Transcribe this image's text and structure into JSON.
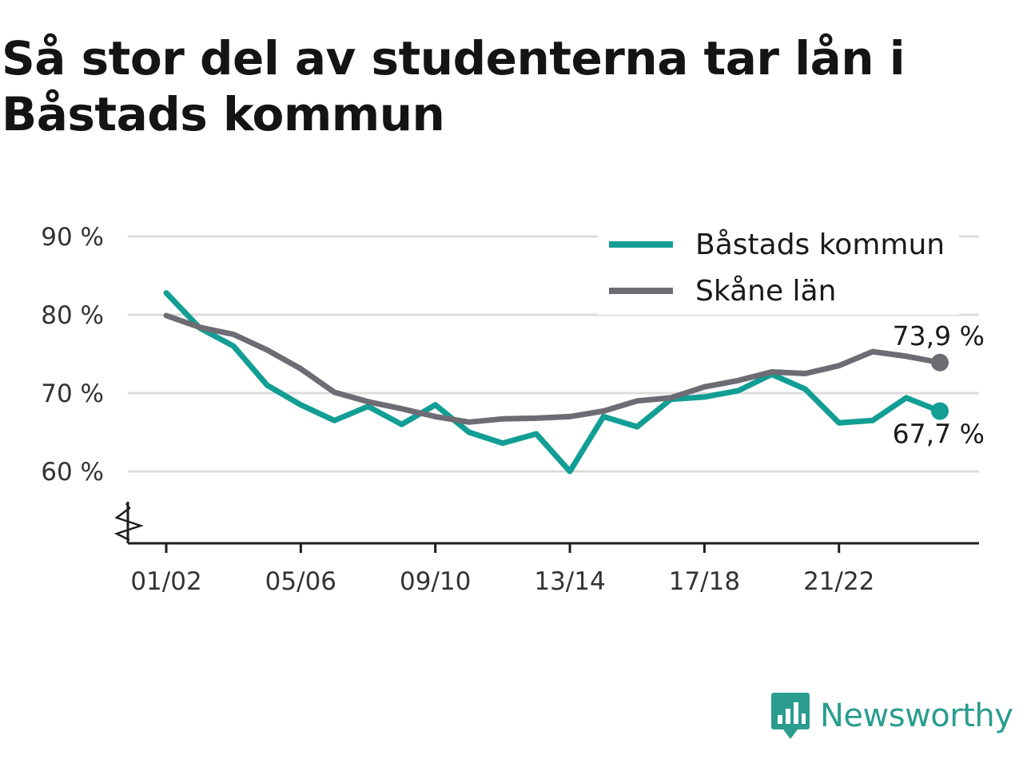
{
  "title": "Så stor del av studenterna tar lån i Båstads kommun",
  "brand": {
    "name": "Newsworthy",
    "color": "#2a9d8f",
    "icon": "newsworthy-logo-icon"
  },
  "colors": {
    "bastad": "#129e94",
    "skane": "#6e6c73",
    "grid": "#dcdcdc",
    "axis": "#1e1e1e",
    "text": "#333333"
  },
  "chart_data": {
    "type": "line",
    "x": [
      "01/02",
      "02/03",
      "03/04",
      "04/05",
      "05/06",
      "06/07",
      "07/08",
      "08/09",
      "09/10",
      "10/11",
      "11/12",
      "12/13",
      "13/14",
      "14/15",
      "15/16",
      "16/17",
      "17/18",
      "18/19",
      "19/20",
      "20/21",
      "21/22",
      "22/23",
      "23/24",
      "24/25"
    ],
    "x_tick_labels": [
      "01/02",
      "05/06",
      "09/10",
      "13/14",
      "17/18",
      "21/22"
    ],
    "y_tick_labels": [
      "90 %",
      "80 %",
      "70 %",
      "60 %"
    ],
    "y_ticks": [
      90,
      80,
      70,
      60
    ],
    "ylim": [
      51,
      92
    ],
    "y_axis_break": true,
    "grid": true,
    "legend_position": "top-right",
    "series": [
      {
        "name": "Båstads kommun",
        "color": "#129e94",
        "values": [
          82.8,
          78.3,
          76.0,
          71.0,
          68.5,
          66.5,
          68.3,
          66.0,
          68.5,
          65.0,
          63.6,
          64.8,
          60.0,
          67.0,
          65.7,
          69.2,
          69.5,
          70.3,
          72.4,
          70.5,
          66.2,
          66.5,
          69.4,
          67.7
        ],
        "end_label": "67,7 %"
      },
      {
        "name": "Skåne län",
        "color": "#6e6c73",
        "values": [
          79.9,
          78.4,
          77.5,
          75.5,
          73.1,
          70.1,
          68.9,
          68.0,
          67.0,
          66.3,
          66.7,
          66.8,
          67.0,
          67.7,
          69.0,
          69.4,
          70.8,
          71.6,
          72.7,
          72.5,
          73.5,
          75.3,
          74.7,
          73.9
        ],
        "end_label": "73,9 %"
      }
    ]
  }
}
